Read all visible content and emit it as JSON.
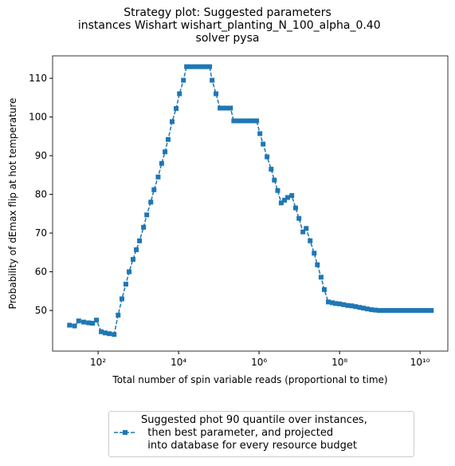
{
  "chart_data": {
    "type": "line",
    "title": "Strategy plot: Suggested parameters\n instances Wishart wishart_planting_N_100_alpha_0.40\nsolver pysa",
    "xlabel": "Total number of spin variable reads (proportional to time)",
    "ylabel": "Probability of dEmax flip at hot temperature",
    "xscale": "log",
    "xlim": [
      7.4,
      49000000000
    ],
    "ylim": [
      39.5,
      115.8
    ],
    "xticks": [
      {
        "value": 100,
        "label": "10²"
      },
      {
        "value": 10000,
        "label": "10⁴"
      },
      {
        "value": 1000000,
        "label": "10⁶"
      },
      {
        "value": 100000000,
        "label": "10⁸"
      },
      {
        "value": 10000000000,
        "label": "10¹⁰"
      }
    ],
    "yticks": [
      50,
      60,
      70,
      80,
      90,
      100,
      110
    ],
    "grid": false,
    "legend": "below",
    "series": [
      {
        "name": "Suggested phot 90 quantile over instances,\n  then best parameter, and projected\n  into database for every resource budget",
        "color": "#1f77b4",
        "marker": "square",
        "x": [
          19.5,
          26,
          33,
          44,
          58,
          73,
          91,
          120,
          150,
          190,
          250,
          315,
          390,
          490,
          590,
          740,
          890,
          1070,
          1350,
          1620,
          2040,
          2450,
          3100,
          3800,
          4600,
          5500,
          6900,
          8700,
          10500,
          13200,
          15800,
          20000,
          25000,
          31500,
          39000,
          49000,
          59000,
          68000,
          85000,
          107000,
          135000,
          162000,
          195000,
          235000,
          295000,
          365000,
          460000,
          580000,
          730000,
          870000,
          1050000,
          1260000,
          1580000,
          2000000,
          2400000,
          2900000,
          3550000,
          4300000,
          5150000,
          6500000,
          8100000,
          9800000,
          12300000,
          14800000,
          18600000,
          23400000,
          28100000,
          34700000,
          41700000,
          52500000,
          66000000,
          79400000,
          100000000,
          126000000,
          158000000,
          200000000,
          250000000,
          316000000,
          390000000,
          490000000,
          620000000,
          780000000,
          980000000,
          1230000000,
          1550000000,
          1950000000,
          2450000000,
          3100000000,
          3800000000,
          4800000000,
          6000000000,
          7600000000,
          9500000000,
          12000000000,
          15000000000,
          19000000000
        ],
        "values": [
          46.2,
          46.0,
          47.3,
          47.0,
          46.8,
          46.7,
          47.5,
          44.5,
          44.2,
          44.0,
          43.8,
          48.8,
          53.0,
          56.8,
          60.0,
          63.2,
          65.7,
          68.0,
          71.5,
          74.7,
          78.0,
          81.2,
          84.5,
          88.0,
          91.0,
          94.2,
          98.8,
          102.2,
          106.0,
          109.5,
          113,
          113,
          113,
          113,
          113,
          113,
          113,
          109.5,
          106,
          102.3,
          102.3,
          102.3,
          102.3,
          99,
          99,
          99,
          99,
          99,
          99,
          99,
          95.7,
          93,
          89.7,
          86.5,
          83.7,
          81,
          77.8,
          78.5,
          79.2,
          79.7,
          76.5,
          73.8,
          70.3,
          71.2,
          68,
          64.8,
          61.8,
          58.6,
          55.4,
          52.2,
          52,
          51.8,
          51.7,
          51.5,
          51.3,
          51.2,
          51.0,
          50.8,
          50.6,
          50.4,
          50.2,
          50.1,
          50.0,
          50.0,
          50.0,
          50.0,
          50.0,
          50.0,
          50.0,
          50.0,
          50.0,
          50.0,
          50.0,
          50.0,
          50.0,
          50.0
        ]
      }
    ]
  }
}
